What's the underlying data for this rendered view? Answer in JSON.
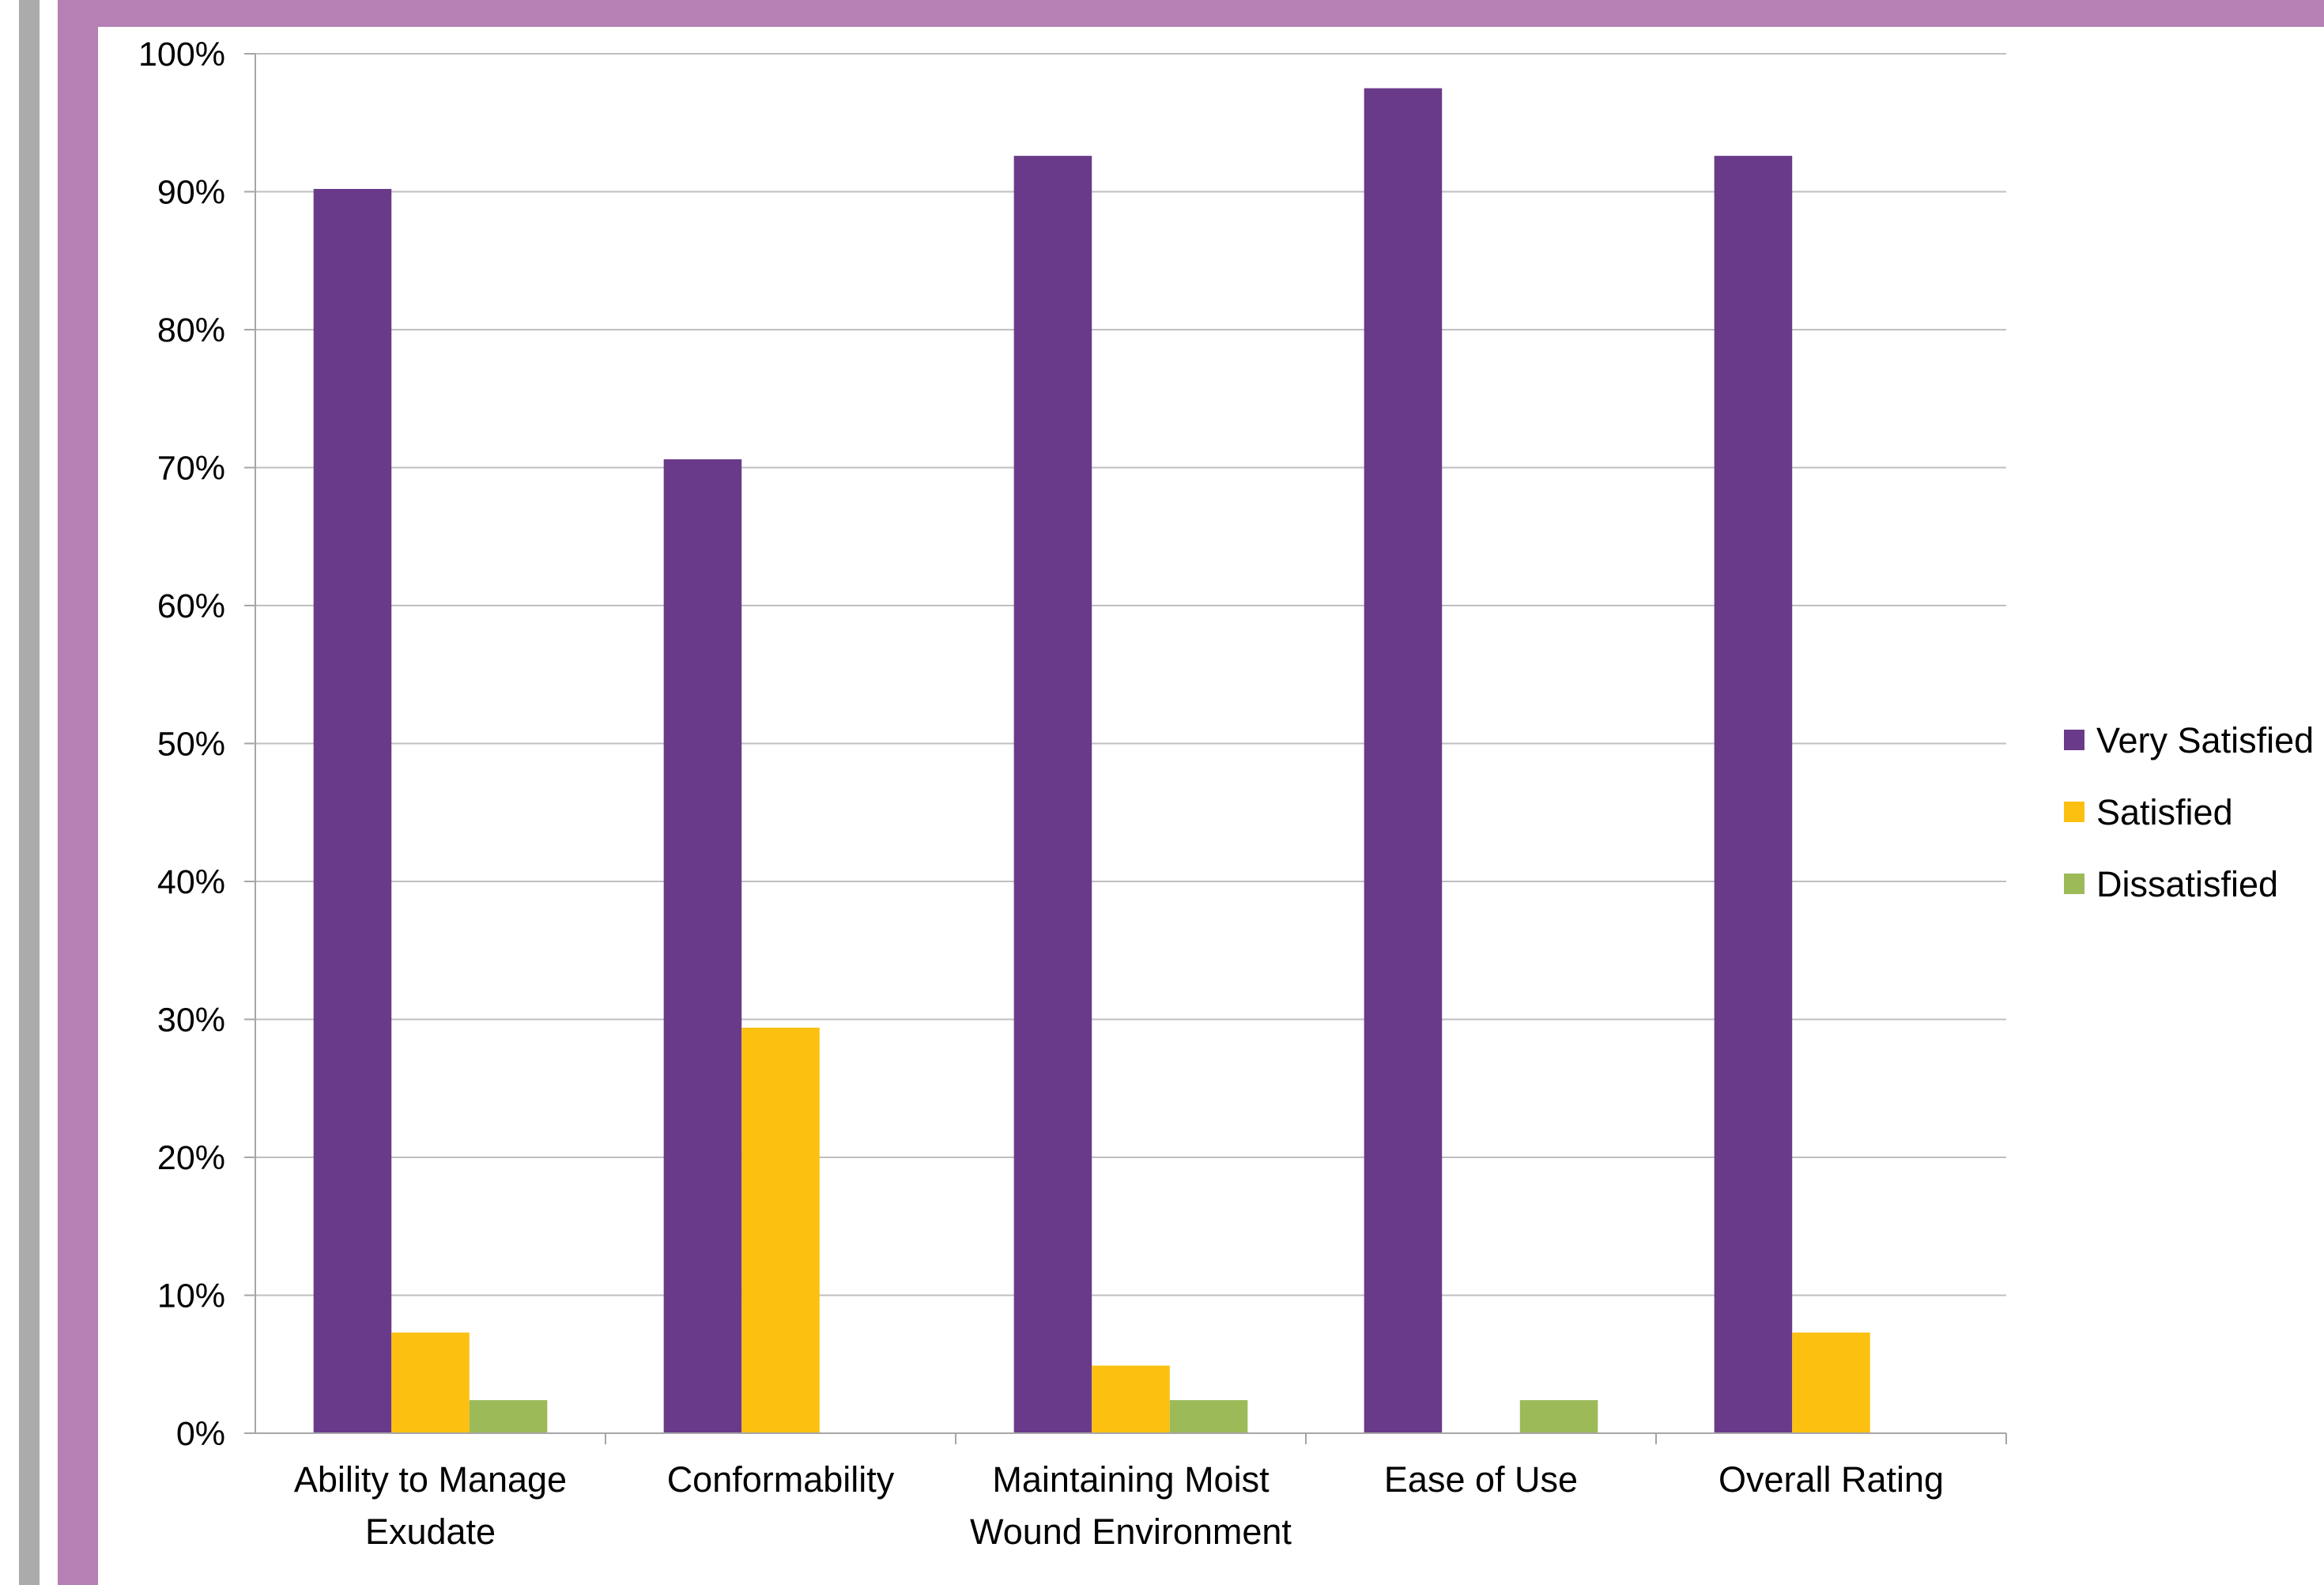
{
  "colors": {
    "frame_gray": "#ababab",
    "frame_purple": "#b580b3",
    "grid": "#bfbfbf",
    "axis": "#a6a6a6"
  },
  "chart_data": {
    "type": "bar",
    "title": "",
    "xlabel": "",
    "ylabel": "",
    "ylim": [
      0,
      100
    ],
    "y_ticks": [
      0,
      10,
      20,
      30,
      40,
      50,
      60,
      70,
      80,
      90,
      100
    ],
    "y_tick_labels": [
      "0%",
      "10%",
      "20%",
      "30%",
      "40%",
      "50%",
      "60%",
      "70%",
      "80%",
      "90%",
      "100%"
    ],
    "grid": true,
    "legend_position": "right",
    "categories": [
      [
        "Ability to Manage",
        "Exudate"
      ],
      [
        "Conformability"
      ],
      [
        "Maintaining Moist",
        "Wound Environment"
      ],
      [
        "Ease of Use"
      ],
      [
        "Overall Rating"
      ]
    ],
    "series": [
      {
        "name": "Very Satisfied",
        "color": "#6a3a8a",
        "values": [
          90.2,
          70.6,
          92.6,
          97.5,
          92.6
        ]
      },
      {
        "name": "Satisfied",
        "color": "#fbc010",
        "values": [
          7.3,
          29.4,
          4.9,
          0,
          7.3
        ]
      },
      {
        "name": "Dissatisfied",
        "color": "#9cbb58",
        "values": [
          2.4,
          0,
          2.4,
          2.4,
          0
        ]
      }
    ]
  }
}
